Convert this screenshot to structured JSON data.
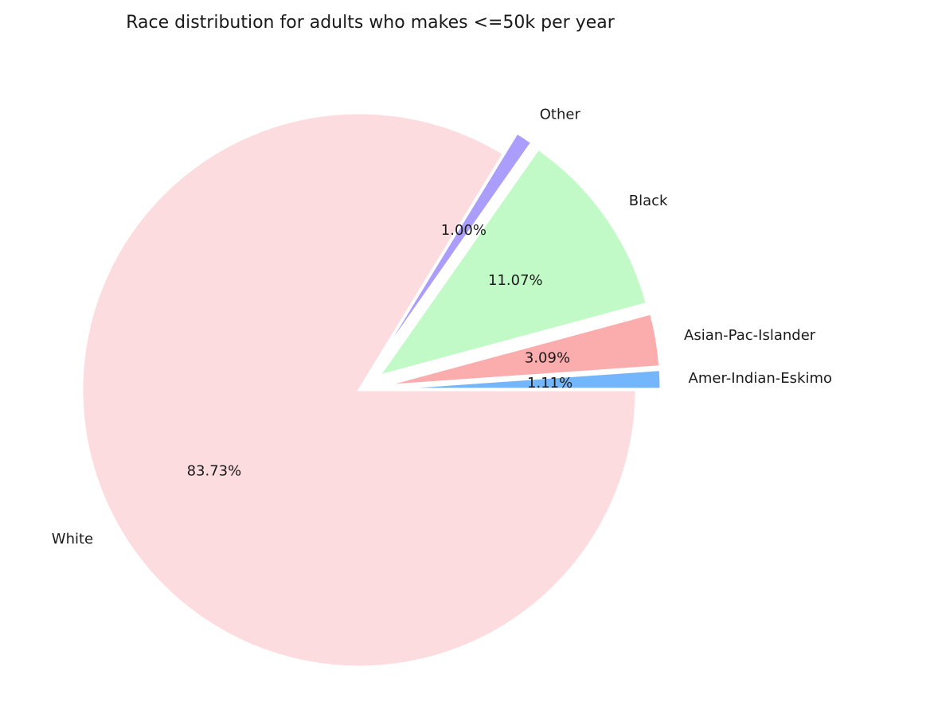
{
  "chart_data": {
    "type": "pie",
    "title": "Race distribution for adults who makes <=50k per year",
    "start_angle_deg": 0,
    "direction": "counterclockwise",
    "slices": [
      {
        "label": "Amer-Indian-Eskimo",
        "value": 1.11,
        "pct_text": "1.11%",
        "color": "#74b6fc",
        "exploded": true
      },
      {
        "label": "Asian-Pac-Islander",
        "value": 3.09,
        "pct_text": "3.09%",
        "color": "#fbacac",
        "exploded": true
      },
      {
        "label": "Black",
        "value": 11.07,
        "pct_text": "11.07%",
        "color": "#c1fac6",
        "exploded": true
      },
      {
        "label": "Other",
        "value": 1.0,
        "pct_text": "1.00%",
        "color": "#aa9dfb",
        "exploded": true
      },
      {
        "label": "White",
        "value": 83.73,
        "pct_text": "83.73%",
        "color": "#fddce0",
        "exploded": false
      }
    ]
  }
}
